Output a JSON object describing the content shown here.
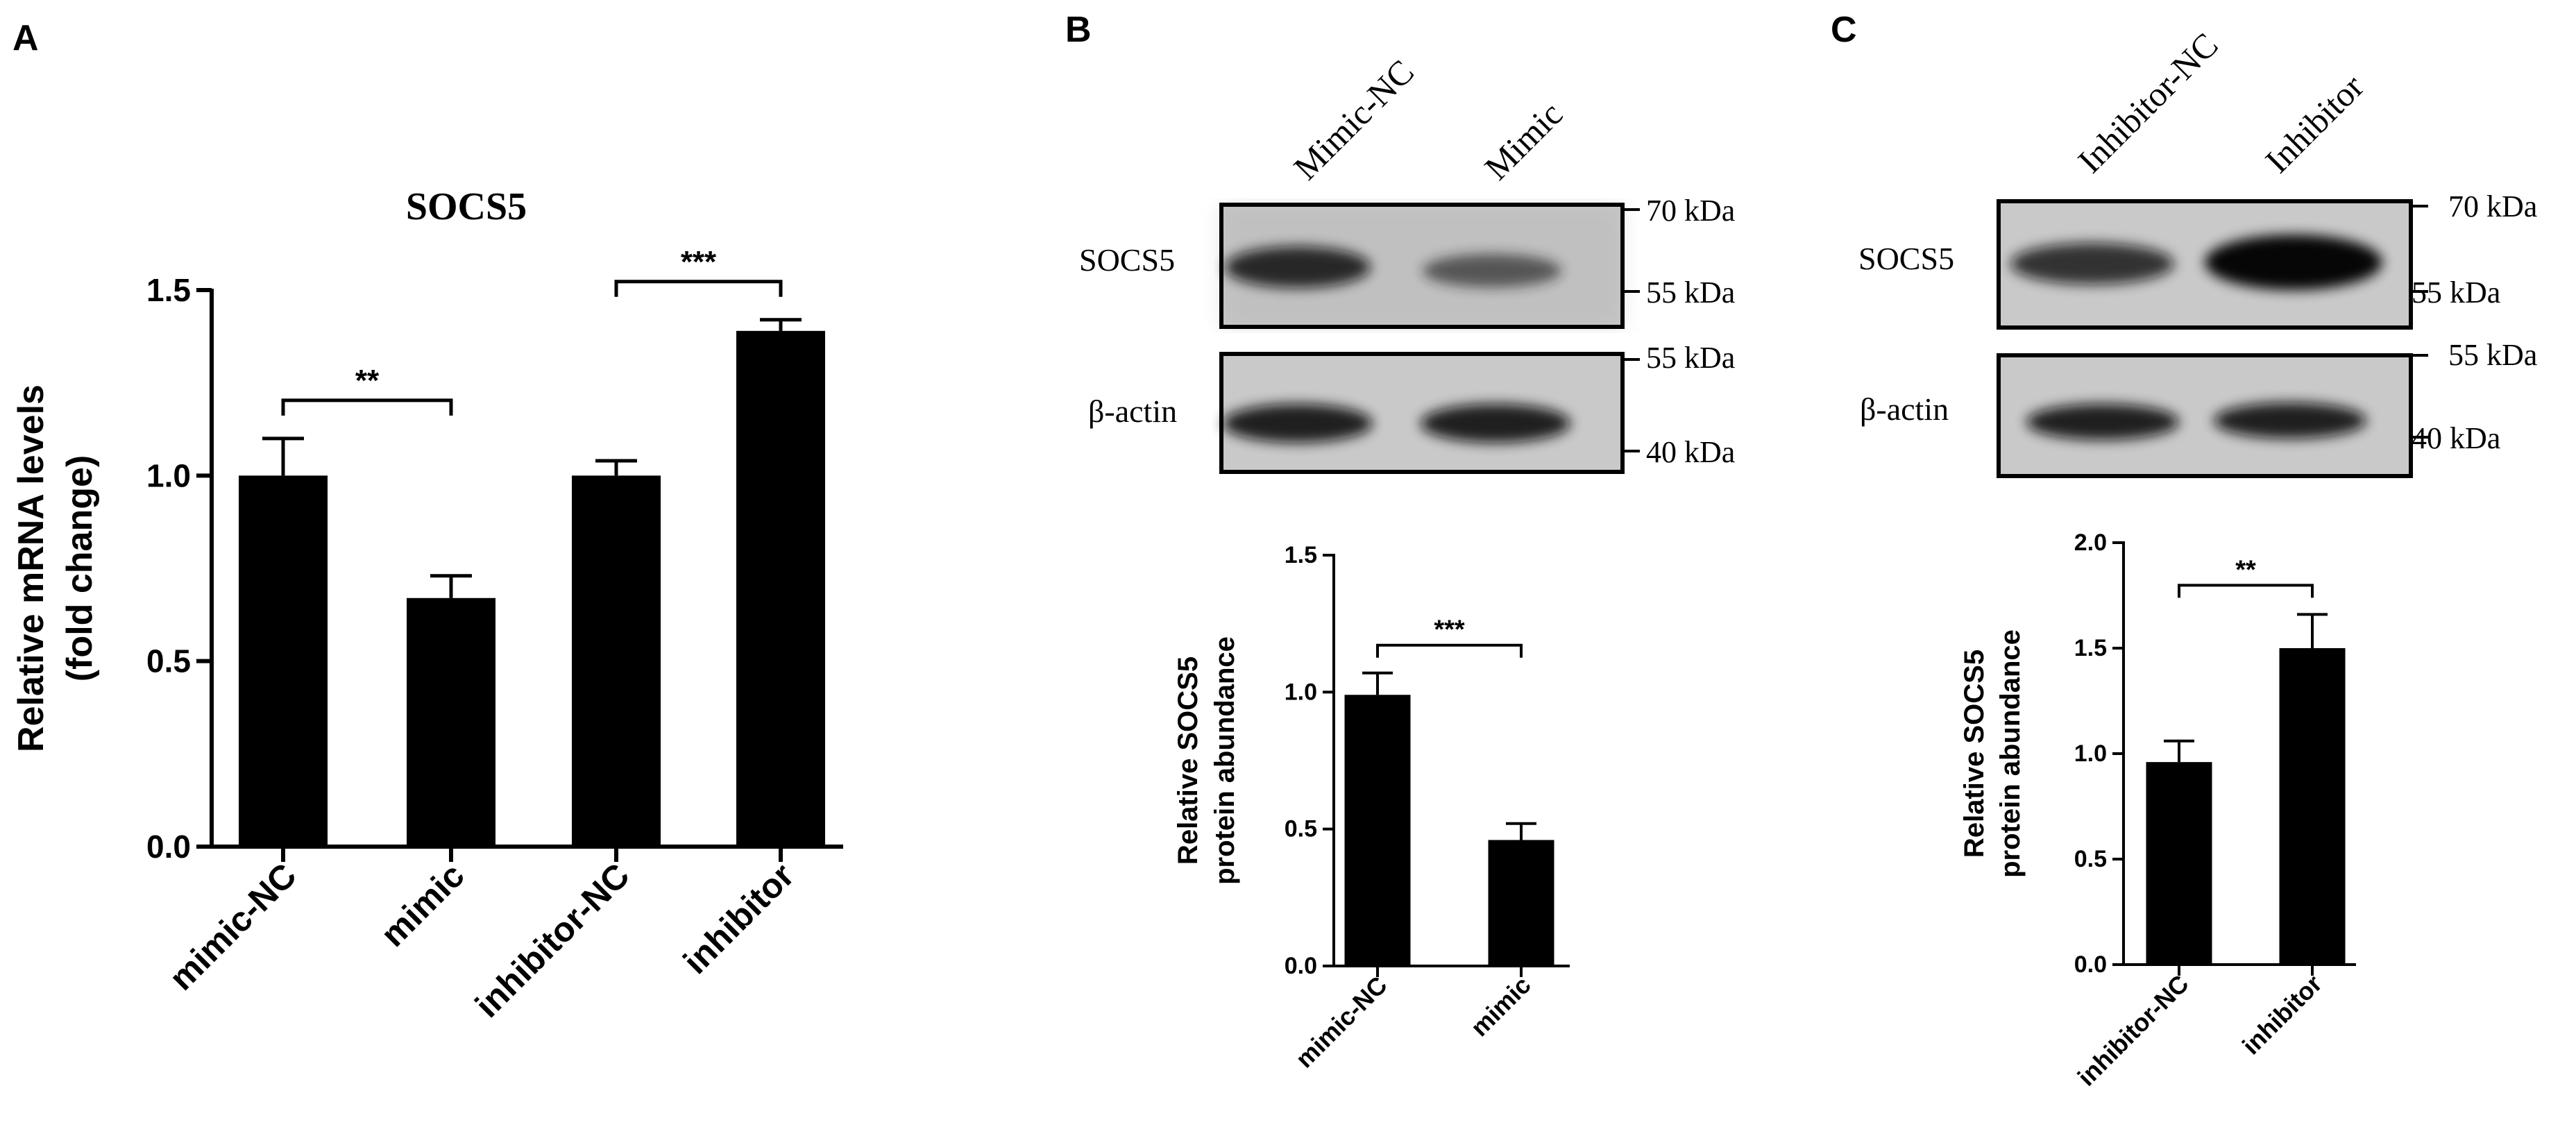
{
  "panels": {
    "A": {
      "letter": "A"
    },
    "B": {
      "letter": "B",
      "blot": {
        "lanes": [
          "Mimic-NC",
          "Mimic"
        ],
        "rows": [
          {
            "label": "SOCS5",
            "band_intensity": [
              0.85,
              0.65
            ]
          },
          {
            "label": "β-actin",
            "band_intensity": [
              0.9,
              0.9
            ]
          }
        ],
        "markers_top": [
          "70 kDa",
          "55 kDa"
        ],
        "markers_bottom": [
          "55 kDa",
          "40 kDa"
        ]
      }
    },
    "C": {
      "letter": "C",
      "blot": {
        "lanes": [
          "Inhibitor-NC",
          "Inhibitor"
        ],
        "rows": [
          {
            "label": "SOCS5",
            "band_intensity": [
              0.8,
              0.97
            ]
          },
          {
            "label": "β-actin",
            "band_intensity": [
              0.9,
              0.9
            ]
          }
        ],
        "markers_top": [
          "70 kDa",
          "55 kDa"
        ],
        "markers_bottom": [
          "55 kDa",
          "40 kDa"
        ]
      }
    }
  },
  "colors": {
    "bar": "#000000",
    "axis": "#000000",
    "background": "#ffffff"
  },
  "chart_data": [
    {
      "type": "bar",
      "panel": "A",
      "title": "SOCS5",
      "ylabel": [
        "Relative mRNA levels",
        "(fold change)"
      ],
      "xlabel": "",
      "categories": [
        "mimic-NC",
        "mimic",
        "inhibitor-NC",
        "inhibitor"
      ],
      "values": [
        1.0,
        0.67,
        1.0,
        1.39
      ],
      "errors": [
        0.1,
        0.06,
        0.04,
        0.03
      ],
      "ylim": [
        0,
        1.5
      ],
      "yticks": [
        "0.0",
        "0.5",
        "1.0",
        "1.5"
      ],
      "significance": [
        {
          "from": 0,
          "to": 1,
          "label": "**"
        },
        {
          "from": 2,
          "to": 3,
          "label": "***"
        }
      ]
    },
    {
      "type": "bar",
      "panel": "B",
      "title": "",
      "ylabel": [
        "Relative SOCS5",
        "protein abundance"
      ],
      "xlabel": "",
      "categories": [
        "mimic-NC",
        "mimic"
      ],
      "values": [
        0.99,
        0.46
      ],
      "errors": [
        0.08,
        0.06
      ],
      "ylim": [
        0,
        1.5
      ],
      "yticks": [
        "0.0",
        "0.5",
        "1.0",
        "1.5"
      ],
      "significance": [
        {
          "from": 0,
          "to": 1,
          "label": "***"
        }
      ]
    },
    {
      "type": "bar",
      "panel": "C",
      "title": "",
      "ylabel": [
        "Relative SOCS5",
        "protein abundance"
      ],
      "xlabel": "",
      "categories": [
        "inhibitor-NC",
        "inhibitor"
      ],
      "values": [
        0.96,
        1.5
      ],
      "errors": [
        0.1,
        0.16
      ],
      "ylim": [
        0,
        2.0
      ],
      "yticks": [
        "0.0",
        "0.5",
        "1.0",
        "1.5",
        "2.0"
      ],
      "significance": [
        {
          "from": 0,
          "to": 1,
          "label": "**"
        }
      ]
    }
  ]
}
